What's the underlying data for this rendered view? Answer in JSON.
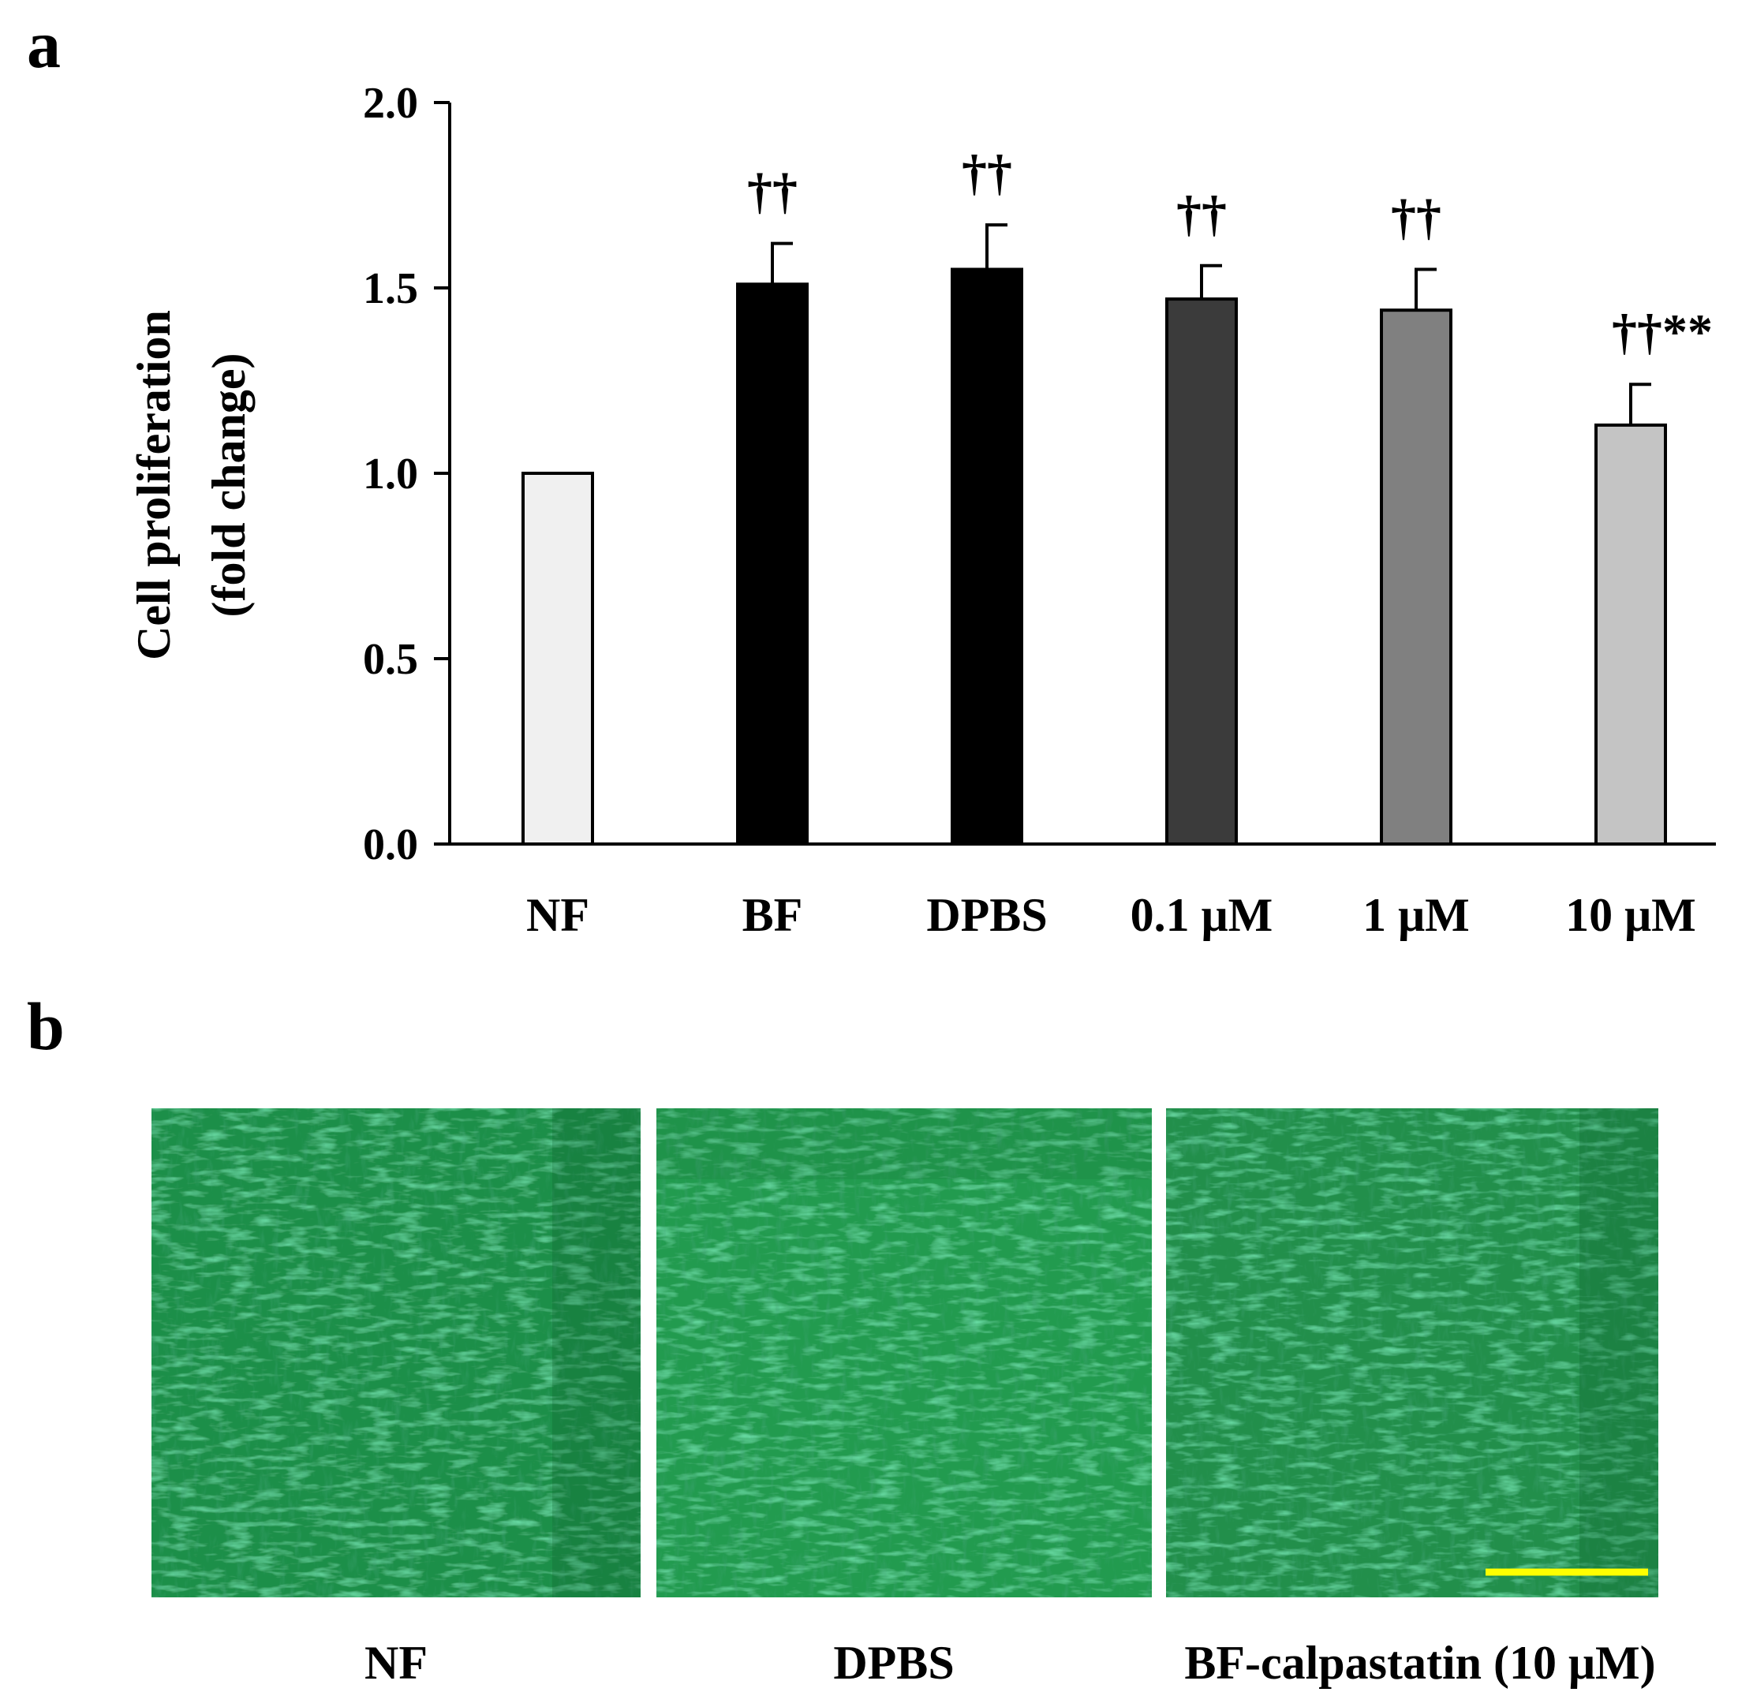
{
  "panel_a_letter": "a",
  "panel_b_letter": "b",
  "chart_data": {
    "type": "bar",
    "title": "",
    "xlabel": "",
    "ylabel": "Cell proliferation",
    "ylabel_line2": "(fold change)",
    "ylim": [
      0,
      2.0
    ],
    "yticks": [
      "0.0",
      "0.5",
      "1.0",
      "1.5",
      "2.0"
    ],
    "ytick_values": [
      0,
      0.5,
      1.0,
      1.5,
      2.0
    ],
    "categories": [
      "NF",
      "BF",
      "DPBS",
      "0.1 μM",
      "1 μM",
      "10 μM"
    ],
    "values": [
      1.0,
      1.51,
      1.55,
      1.47,
      1.44,
      1.13
    ],
    "errors": [
      0,
      0.11,
      0.12,
      0.09,
      0.11,
      0.11
    ],
    "significance": [
      "",
      "††",
      "††",
      "††",
      "††",
      "††**"
    ],
    "bar_colors": [
      "#f0f0f0",
      "#000000",
      "#000000",
      "#3b3b3b",
      "#808080",
      "#c4c4c4"
    ],
    "grid": false,
    "legend": "none"
  },
  "micrographs": {
    "captions": [
      "NF",
      "DPBS",
      "BF-calpastatin (10 μM)"
    ],
    "scale_bar_color": "#ffff00",
    "tint_color": "#2e9e55"
  }
}
